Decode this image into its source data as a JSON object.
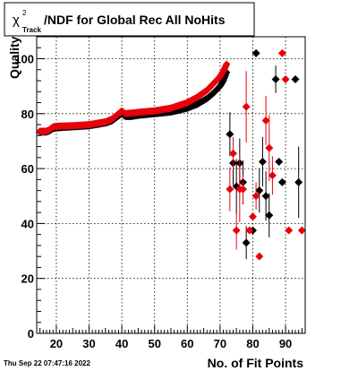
{
  "chart_data": {
    "type": "scatter",
    "title_symbol": "χ",
    "title_sup": "2",
    "title_sub": "Track",
    "title_rest": "/NDF for Global Rec All NoHits",
    "xlabel": "No. of Fit Points",
    "ylabel": "Quality",
    "xlim": [
      14,
      96
    ],
    "ylim": [
      0,
      108
    ],
    "x_ticks": [
      20,
      30,
      40,
      50,
      60,
      70,
      80,
      90
    ],
    "y_ticks": [
      0,
      20,
      40,
      60,
      80,
      100
    ],
    "grid": true,
    "footer": "Thu Sep 22 07:47:16 2022",
    "colors": {
      "series_black": "#000000",
      "series_red": "#e8000b"
    },
    "series": [
      {
        "color": "black",
        "dense_band": [
          [
            15,
            73.3
          ],
          [
            17,
            73.3
          ],
          [
            18,
            73.8
          ],
          [
            19,
            74.6
          ],
          [
            20,
            74.8
          ],
          [
            22,
            75.0
          ],
          [
            25,
            75.2
          ],
          [
            30,
            75.6
          ],
          [
            35,
            76.6
          ],
          [
            37,
            77.4
          ],
          [
            39,
            79.2
          ],
          [
            40,
            80.0
          ],
          [
            41,
            79.0
          ],
          [
            43,
            79.0
          ],
          [
            45,
            79.4
          ],
          [
            50,
            80.0
          ],
          [
            55,
            80.6
          ],
          [
            60,
            82.0
          ],
          [
            63,
            83.4
          ],
          [
            66,
            85.5
          ],
          [
            68,
            87.5
          ],
          [
            70,
            90.0
          ],
          [
            71,
            92.0
          ],
          [
            72,
            95.0
          ]
        ],
        "points": [
          {
            "x": 73,
            "y": 72.5,
            "err": 8
          },
          {
            "x": 74,
            "y": 62,
            "err": 8
          },
          {
            "x": 75,
            "y": 53.5,
            "err": 10
          },
          {
            "x": 76,
            "y": 62,
            "err": 9
          },
          {
            "x": 77,
            "y": 55,
            "err": 8
          },
          {
            "x": 78,
            "y": 33,
            "err": 6
          },
          {
            "x": 80,
            "y": 37.5,
            "err": 0
          },
          {
            "x": 81,
            "y": 102,
            "err": 0
          },
          {
            "x": 82,
            "y": 52,
            "err": 8
          },
          {
            "x": 83,
            "y": 62.5,
            "err": 9
          },
          {
            "x": 84,
            "y": 50,
            "err": 9
          },
          {
            "x": 85,
            "y": 43,
            "err": 8
          },
          {
            "x": 87,
            "y": 92.5,
            "err": 5
          },
          {
            "x": 88,
            "y": 62.5,
            "err": 0
          },
          {
            "x": 89,
            "y": 55,
            "err": 0
          },
          {
            "x": 93,
            "y": 92.5,
            "err": 0
          },
          {
            "x": 94,
            "y": 55,
            "err": 13
          }
        ]
      },
      {
        "color": "red",
        "dense_band": [
          [
            15,
            73.6
          ],
          [
            17,
            73.6
          ],
          [
            18,
            74.2
          ],
          [
            19,
            75.2
          ],
          [
            20,
            75.4
          ],
          [
            22,
            75.5
          ],
          [
            25,
            75.6
          ],
          [
            30,
            76.0
          ],
          [
            35,
            77.0
          ],
          [
            37,
            78.0
          ],
          [
            39,
            80.0
          ],
          [
            40,
            81.0
          ],
          [
            41,
            80.0
          ],
          [
            43,
            80.2
          ],
          [
            45,
            80.5
          ],
          [
            50,
            81.0
          ],
          [
            55,
            82.0
          ],
          [
            60,
            84.0
          ],
          [
            63,
            86.0
          ],
          [
            66,
            88.5
          ],
          [
            68,
            91.0
          ],
          [
            70,
            93.5
          ],
          [
            71,
            95.5
          ],
          [
            72,
            98.0
          ]
        ],
        "points": [
          {
            "x": 73,
            "y": 52.5,
            "err": 8
          },
          {
            "x": 74,
            "y": 65.5,
            "err": 6
          },
          {
            "x": 75,
            "y": 37.5,
            "err": 7
          },
          {
            "x": 76,
            "y": 52.5,
            "err": 12
          },
          {
            "x": 77,
            "y": 52.5,
            "err": 5
          },
          {
            "x": 78,
            "y": 82.5,
            "err": 13
          },
          {
            "x": 79,
            "y": 37.5,
            "err": 0
          },
          {
            "x": 80,
            "y": 42.5,
            "err": 0
          },
          {
            "x": 81,
            "y": 50,
            "err": 5
          },
          {
            "x": 82,
            "y": 28,
            "err": 0
          },
          {
            "x": 84,
            "y": 77.5,
            "err": 9
          },
          {
            "x": 85,
            "y": 67.5,
            "err": 12
          },
          {
            "x": 86,
            "y": 57.5,
            "err": 7
          },
          {
            "x": 89,
            "y": 102,
            "err": 0
          },
          {
            "x": 90,
            "y": 92.5,
            "err": 0
          },
          {
            "x": 91,
            "y": 37.5,
            "err": 0
          },
          {
            "x": 95,
            "y": 37.5,
            "err": 0
          }
        ]
      }
    ]
  }
}
